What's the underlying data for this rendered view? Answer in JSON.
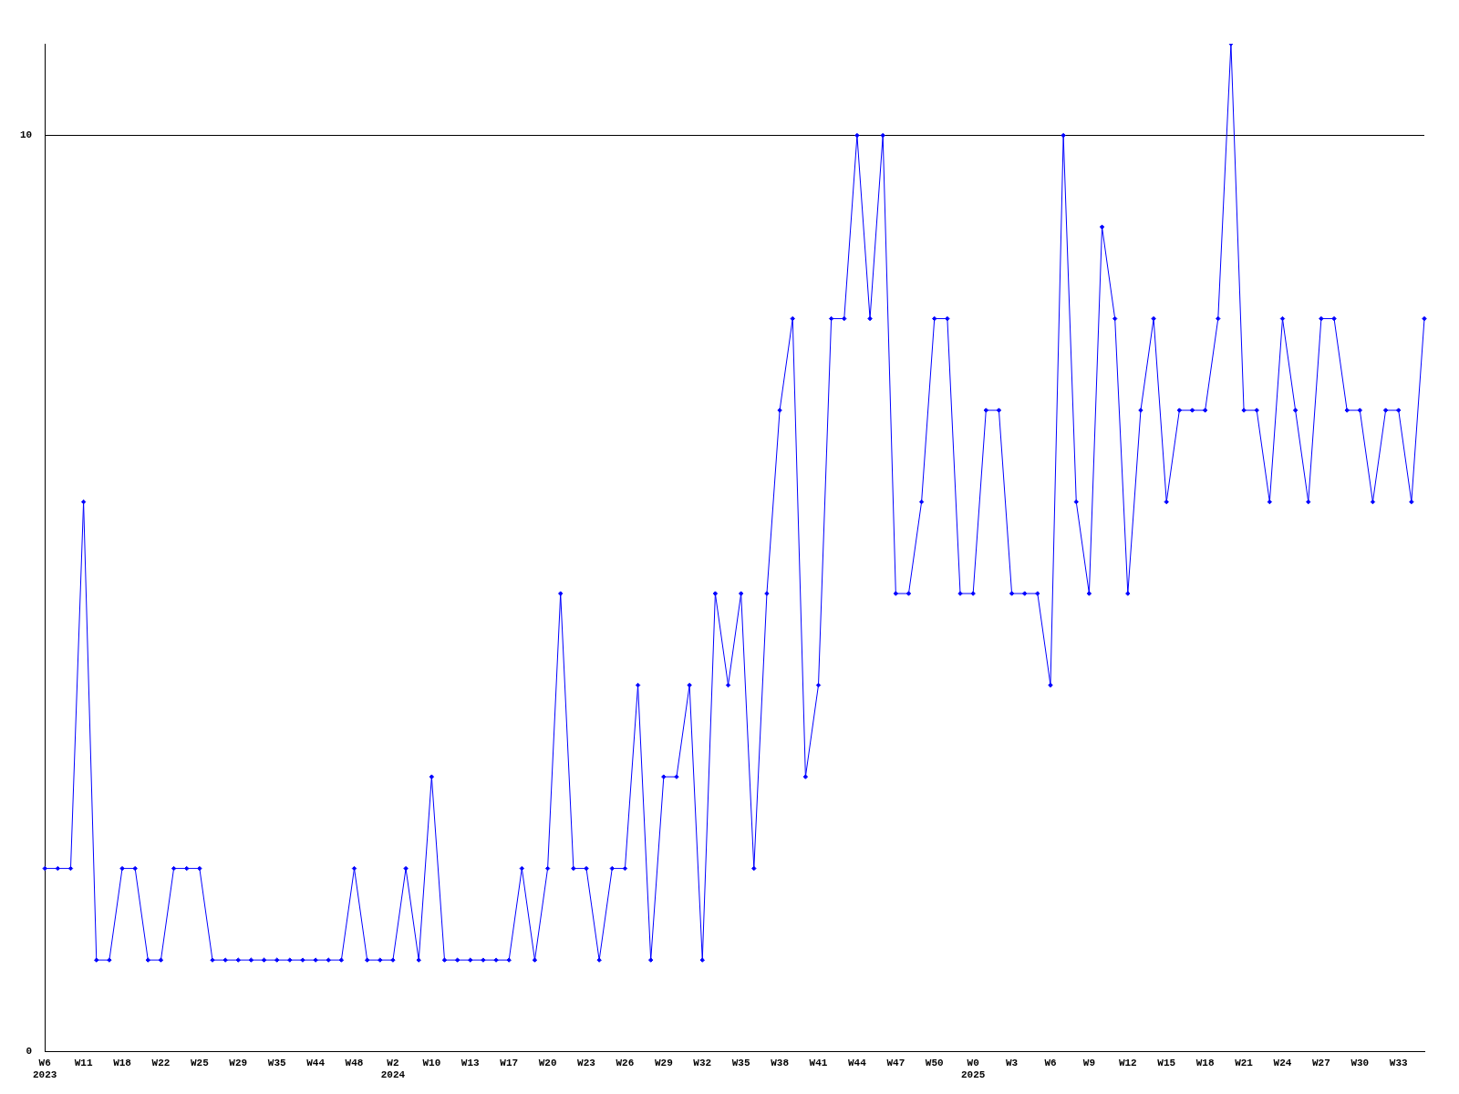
{
  "chart_data": {
    "type": "line",
    "categories": [
      "W6\n2023",
      null,
      null,
      "W11",
      null,
      null,
      "W18",
      null,
      null,
      "W22",
      null,
      null,
      "W25",
      null,
      null,
      "W29",
      null,
      null,
      "W35",
      null,
      null,
      "W44",
      null,
      null,
      "W48",
      null,
      null,
      "W2\n2024",
      null,
      null,
      "W10",
      null,
      null,
      "W13",
      null,
      null,
      "W17",
      null,
      null,
      "W20",
      null,
      null,
      "W23",
      null,
      null,
      "W26",
      null,
      null,
      "W29",
      null,
      null,
      "W32",
      null,
      null,
      "W35",
      null,
      null,
      "W38",
      null,
      null,
      "W41",
      null,
      null,
      "W44",
      null,
      null,
      "W47",
      null,
      null,
      "W50",
      null,
      null,
      "W0\n2025",
      null,
      null,
      "W3",
      null,
      null,
      "W6",
      null,
      null,
      "W9",
      null,
      null,
      "W12",
      null,
      null,
      "W15",
      null,
      null,
      "W18",
      null,
      null,
      "W21",
      null,
      null,
      "W24",
      null,
      null,
      "W27",
      null,
      null,
      "W30",
      null,
      null,
      "W33",
      null,
      null
    ],
    "series": [
      {
        "color": "#0000ff",
        "values": [
          2,
          2,
          2,
          6,
          1,
          1,
          2,
          2,
          1,
          1,
          2,
          2,
          2,
          1,
          1,
          1,
          1,
          1,
          1,
          1,
          1,
          1,
          1,
          1,
          2,
          1,
          1,
          1,
          2,
          1,
          3,
          1,
          1,
          1,
          1,
          1,
          1,
          2,
          1,
          2,
          5,
          2,
          2,
          1,
          2,
          2,
          4,
          1,
          3,
          3,
          4,
          1,
          5,
          4,
          5,
          2,
          5,
          7,
          8,
          3,
          4,
          8,
          8,
          10,
          8,
          10,
          5,
          5,
          6,
          8,
          8,
          5,
          5,
          7,
          7,
          5,
          5,
          5,
          4,
          10,
          6,
          5,
          9,
          8,
          5,
          7,
          8,
          6,
          7,
          7,
          7,
          8,
          11,
          7,
          7,
          6,
          8,
          7,
          6,
          8,
          8,
          7,
          7,
          6,
          7,
          7,
          6,
          8
        ]
      }
    ],
    "ylim": [
      0,
      11
    ],
    "yticks": [
      0,
      10
    ],
    "grid": "y",
    "marker": "diamond",
    "line_style": "solid",
    "legend": false
  }
}
